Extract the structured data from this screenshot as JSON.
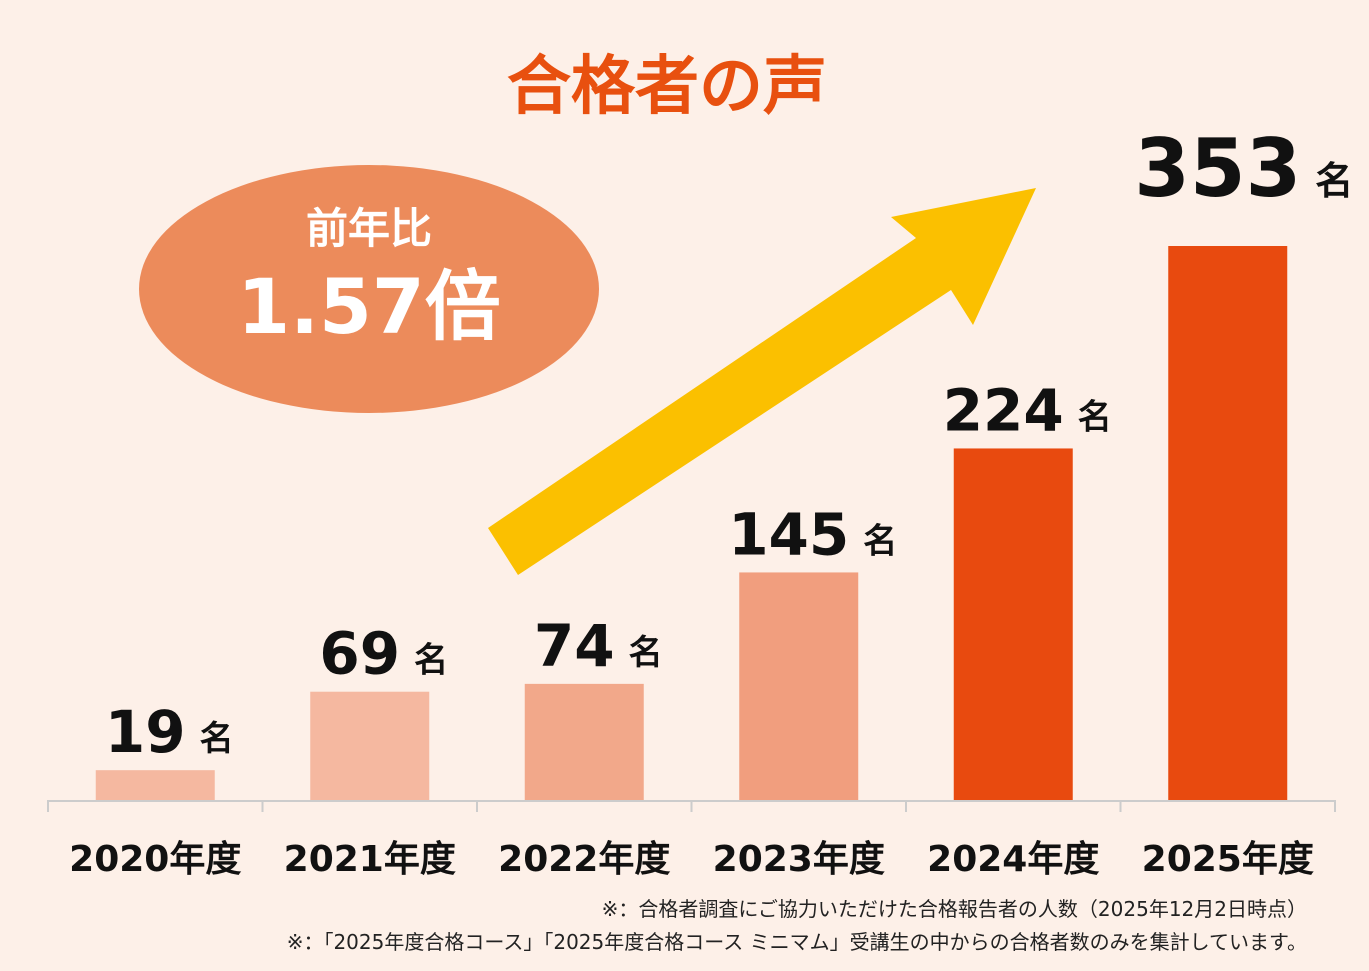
{
  "chart_data": {
    "type": "bar",
    "title": "合格者の声",
    "categories": [
      "2020年度",
      "2021年度",
      "2022年度",
      "2023年度",
      "2024年度",
      "2025年度"
    ],
    "values": [
      19,
      69,
      74,
      145,
      224,
      353
    ],
    "value_labels": [
      "19",
      "69",
      "74",
      "145",
      "224",
      "353"
    ],
    "unit": "名",
    "bar_colors": [
      "#f5b8a0",
      "#f5b8a0",
      "#f2a88a",
      "#f19e7e",
      "#e84a0f",
      "#e84a0f"
    ],
    "ylim": [
      0,
      360
    ],
    "grid": false,
    "legend": "none"
  },
  "callout": {
    "line1": "前年比",
    "line2": "1.57倍",
    "color": "#ec8b5b"
  },
  "arrow_color": "#fbc000",
  "title_color": "#e8500f",
  "notes": [
    "※：合格者調査にご協力いただけた合格報告者の人数（2025年12月2日時点）",
    "※：「2025年度合格コース」「2025年度合格コース ミニマム」受講生の中からの合格者数のみを集計しています。"
  ]
}
